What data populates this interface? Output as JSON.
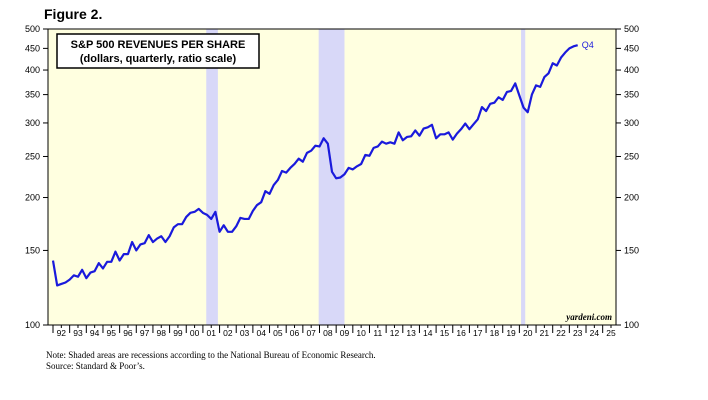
{
  "figure_label": "Figure 2.",
  "notes": {
    "line1": "Note: Shaded areas are recessions according to the National Bureau of Economic Research.",
    "line2": "Source: Standard & Poor’s."
  },
  "chart_data": {
    "type": "line",
    "title": "S&P 500 REVENUES PER SHARE",
    "subtitle": "(dollars, quarterly, ratio scale)",
    "yscale": "log",
    "ylim": [
      100,
      500
    ],
    "xlim": [
      1991.7,
      2025.8
    ],
    "yticks": [
      100,
      150,
      200,
      250,
      300,
      350,
      400,
      450,
      500
    ],
    "xticks": [
      {
        "t": 1992,
        "label": "92"
      },
      {
        "t": 1993,
        "label": "93"
      },
      {
        "t": 1994,
        "label": "94"
      },
      {
        "t": 1995,
        "label": "95"
      },
      {
        "t": 1996,
        "label": "96"
      },
      {
        "t": 1997,
        "label": "97"
      },
      {
        "t": 1998,
        "label": "98"
      },
      {
        "t": 1999,
        "label": "99"
      },
      {
        "t": 2000,
        "label": "00"
      },
      {
        "t": 2001,
        "label": "01"
      },
      {
        "t": 2002,
        "label": "02"
      },
      {
        "t": 2003,
        "label": "03"
      },
      {
        "t": 2004,
        "label": "04"
      },
      {
        "t": 2005,
        "label": "05"
      },
      {
        "t": 2006,
        "label": "06"
      },
      {
        "t": 2007,
        "label": "07"
      },
      {
        "t": 2008,
        "label": "08"
      },
      {
        "t": 2009,
        "label": "09"
      },
      {
        "t": 2010,
        "label": "10"
      },
      {
        "t": 2011,
        "label": "11"
      },
      {
        "t": 2012,
        "label": "12"
      },
      {
        "t": 2013,
        "label": "13"
      },
      {
        "t": 2014,
        "label": "14"
      },
      {
        "t": 2015,
        "label": "15"
      },
      {
        "t": 2016,
        "label": "16"
      },
      {
        "t": 2017,
        "label": "17"
      },
      {
        "t": 2018,
        "label": "18"
      },
      {
        "t": 2019,
        "label": "19"
      },
      {
        "t": 2020,
        "label": "20"
      },
      {
        "t": 2021,
        "label": "21"
      },
      {
        "t": 2022,
        "label": "22"
      },
      {
        "t": 2023,
        "label": "23"
      },
      {
        "t": 2024,
        "label": "24"
      },
      {
        "t": 2025,
        "label": "25"
      }
    ],
    "recessions": [
      [
        2001.2,
        2001.9
      ],
      [
        2007.95,
        2009.5
      ],
      [
        2020.1,
        2020.35
      ]
    ],
    "end_label": "Q4",
    "watermark": "yardeni.com",
    "colors": {
      "line": "#1a1adc",
      "background": "#ffffe0",
      "recession": "#d8d8f8"
    },
    "series": [
      {
        "points": [
          [
            1992.0,
            142
          ],
          [
            1992.25,
            124
          ],
          [
            1992.5,
            125
          ],
          [
            1992.75,
            126
          ],
          [
            1993.0,
            128
          ],
          [
            1993.25,
            131
          ],
          [
            1993.5,
            130
          ],
          [
            1993.75,
            135
          ],
          [
            1994.0,
            129
          ],
          [
            1994.25,
            133
          ],
          [
            1994.5,
            134
          ],
          [
            1994.75,
            140
          ],
          [
            1995.0,
            136
          ],
          [
            1995.25,
            141
          ],
          [
            1995.5,
            141
          ],
          [
            1995.75,
            149
          ],
          [
            1996.0,
            142
          ],
          [
            1996.25,
            147
          ],
          [
            1996.5,
            147
          ],
          [
            1996.75,
            157
          ],
          [
            1997.0,
            150
          ],
          [
            1997.25,
            155
          ],
          [
            1997.5,
            156
          ],
          [
            1997.75,
            163
          ],
          [
            1998.0,
            157
          ],
          [
            1998.25,
            160
          ],
          [
            1998.5,
            162
          ],
          [
            1998.75,
            157
          ],
          [
            1999.0,
            162
          ],
          [
            1999.25,
            170
          ],
          [
            1999.5,
            173
          ],
          [
            1999.75,
            173
          ],
          [
            2000.0,
            180
          ],
          [
            2000.25,
            184
          ],
          [
            2000.5,
            185
          ],
          [
            2000.75,
            188
          ],
          [
            2001.0,
            184
          ],
          [
            2001.25,
            182
          ],
          [
            2001.5,
            178
          ],
          [
            2001.75,
            185
          ],
          [
            2002.0,
            166
          ],
          [
            2002.25,
            172
          ],
          [
            2002.5,
            166
          ],
          [
            2002.75,
            166
          ],
          [
            2003.0,
            171
          ],
          [
            2003.25,
            179
          ],
          [
            2003.5,
            178
          ],
          [
            2003.75,
            178
          ],
          [
            2004.0,
            186
          ],
          [
            2004.25,
            192
          ],
          [
            2004.5,
            195
          ],
          [
            2004.75,
            207
          ],
          [
            2005.0,
            204
          ],
          [
            2005.25,
            214
          ],
          [
            2005.5,
            220
          ],
          [
            2005.75,
            231
          ],
          [
            2006.0,
            229
          ],
          [
            2006.25,
            235
          ],
          [
            2006.5,
            240
          ],
          [
            2006.75,
            247
          ],
          [
            2007.0,
            243
          ],
          [
            2007.25,
            255
          ],
          [
            2007.5,
            258
          ],
          [
            2007.75,
            265
          ],
          [
            2008.0,
            264
          ],
          [
            2008.25,
            276
          ],
          [
            2008.5,
            268
          ],
          [
            2008.75,
            230
          ],
          [
            2009.0,
            222
          ],
          [
            2009.25,
            223
          ],
          [
            2009.5,
            227
          ],
          [
            2009.75,
            235
          ],
          [
            2010.0,
            233
          ],
          [
            2010.25,
            237
          ],
          [
            2010.5,
            240
          ],
          [
            2010.75,
            252
          ],
          [
            2011.0,
            251
          ],
          [
            2011.25,
            262
          ],
          [
            2011.5,
            264
          ],
          [
            2011.75,
            271
          ],
          [
            2012.0,
            268
          ],
          [
            2012.25,
            270
          ],
          [
            2012.5,
            268
          ],
          [
            2012.75,
            285
          ],
          [
            2013.0,
            273
          ],
          [
            2013.25,
            278
          ],
          [
            2013.5,
            279
          ],
          [
            2013.75,
            288
          ],
          [
            2014.0,
            280
          ],
          [
            2014.25,
            291
          ],
          [
            2014.5,
            293
          ],
          [
            2014.75,
            297
          ],
          [
            2015.0,
            276
          ],
          [
            2015.25,
            282
          ],
          [
            2015.5,
            282
          ],
          [
            2015.75,
            285
          ],
          [
            2016.0,
            274
          ],
          [
            2016.25,
            283
          ],
          [
            2016.5,
            290
          ],
          [
            2016.75,
            299
          ],
          [
            2017.0,
            290
          ],
          [
            2017.25,
            298
          ],
          [
            2017.5,
            306
          ],
          [
            2017.75,
            327
          ],
          [
            2018.0,
            320
          ],
          [
            2018.25,
            333
          ],
          [
            2018.5,
            335
          ],
          [
            2018.75,
            345
          ],
          [
            2019.0,
            340
          ],
          [
            2019.25,
            355
          ],
          [
            2019.5,
            357
          ],
          [
            2019.75,
            372
          ],
          [
            2020.0,
            348
          ],
          [
            2020.25,
            326
          ],
          [
            2020.5,
            318
          ],
          [
            2020.75,
            350
          ],
          [
            2021.0,
            368
          ],
          [
            2021.25,
            365
          ],
          [
            2021.5,
            385
          ],
          [
            2021.75,
            393
          ],
          [
            2022.0,
            415
          ],
          [
            2022.25,
            410
          ],
          [
            2022.5,
            428
          ],
          [
            2022.75,
            440
          ],
          [
            2023.0,
            450
          ],
          [
            2023.25,
            455
          ],
          [
            2023.5,
            458
          ]
        ]
      }
    ]
  }
}
